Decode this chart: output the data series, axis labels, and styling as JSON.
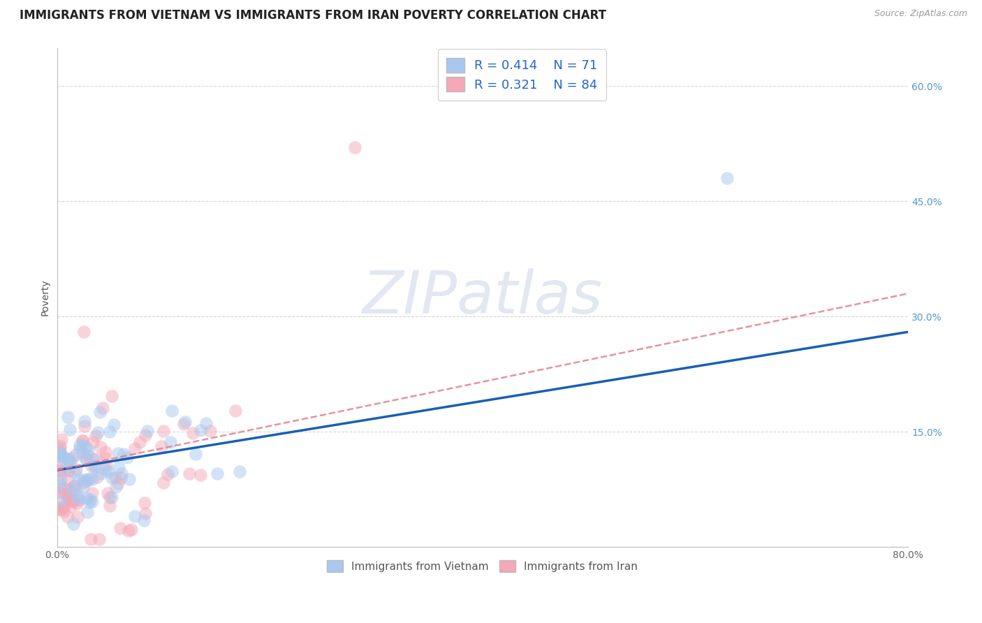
{
  "title": "IMMIGRANTS FROM VIETNAM VS IMMIGRANTS FROM IRAN POVERTY CORRELATION CHART",
  "source": "Source: ZipAtlas.com",
  "ylabel": "Poverty",
  "xlim": [
    0.0,
    0.8
  ],
  "ylim": [
    0.0,
    0.65
  ],
  "xtick_pos": [
    0.0,
    0.2,
    0.4,
    0.6,
    0.8
  ],
  "xtick_labels": [
    "0.0%",
    "",
    "",
    "",
    "80.0%"
  ],
  "ytick_pos": [
    0.0,
    0.15,
    0.3,
    0.45,
    0.6
  ],
  "ytick_right_labels": [
    "",
    "15.0%",
    "30.0%",
    "45.0%",
    "60.0%"
  ],
  "grid_color": "#cccccc",
  "background_color": "#ffffff",
  "watermark": "ZIPatlas",
  "legend_R1": "R = 0.414",
  "legend_N1": "N = 71",
  "legend_R2": "R = 0.321",
  "legend_N2": "N = 84",
  "color_vietnam": "#a8c8f0",
  "color_iran": "#f4a8b8",
  "trendline_vietnam_color": "#1a5fb4",
  "trendline_iran_color": "#e08090",
  "scatter_alpha": 0.5,
  "scatter_size": 180,
  "title_fontsize": 12,
  "axis_label_fontsize": 10,
  "tick_fontsize": 10,
  "legend_fontsize": 13,
  "viet_trendline_x0": 0.0,
  "viet_trendline_y0": 0.1,
  "viet_trendline_x1": 0.8,
  "viet_trendline_y1": 0.28,
  "iran_trendline_x0": 0.0,
  "iran_trendline_y0": 0.1,
  "iran_trendline_x1": 0.8,
  "iran_trendline_y1": 0.33
}
